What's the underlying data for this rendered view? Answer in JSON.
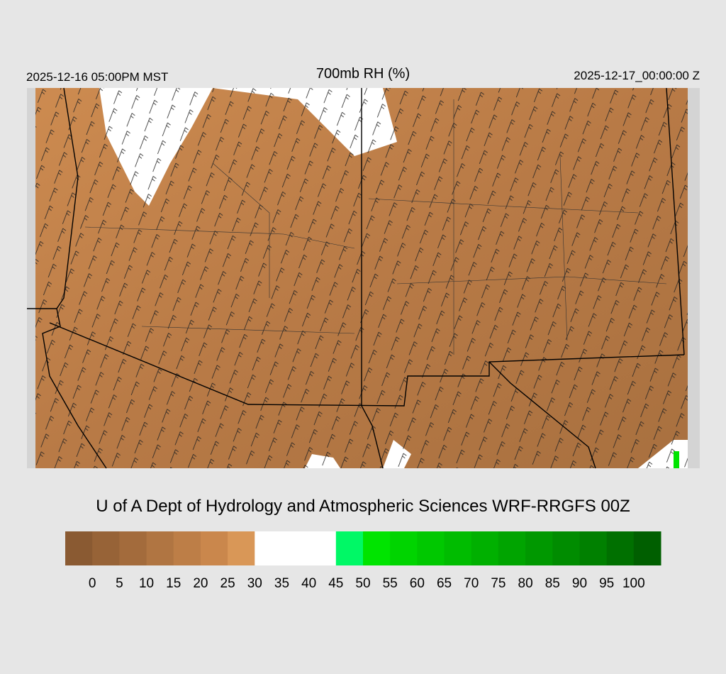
{
  "header": {
    "valid_local": "2025-12-16 05:00PM MST",
    "title": "700mb RH (%)",
    "valid_utc": "2025-12-17_00:00:00 Z"
  },
  "credit": "U of A Dept of Hydrology and Atmospheric Sciences WRF-RRGFS 00Z",
  "colorbar": {
    "ticks": [
      0,
      5,
      10,
      15,
      20,
      25,
      30,
      35,
      40,
      45,
      50,
      55,
      60,
      65,
      70,
      75,
      80,
      85,
      90,
      95,
      100
    ],
    "colors": [
      "#8a5a32",
      "#976337",
      "#a36b3c",
      "#b07542",
      "#bd7e47",
      "#ca874c",
      "#d99757",
      "#ffffff",
      "#ffffff",
      "#ffffff",
      "#00f866",
      "#00e400",
      "#00d400",
      "#00c800",
      "#00bc00",
      "#00b000",
      "#00a400",
      "#009800",
      "#008c00",
      "#008000",
      "#007000",
      "#005f00"
    ]
  }
}
